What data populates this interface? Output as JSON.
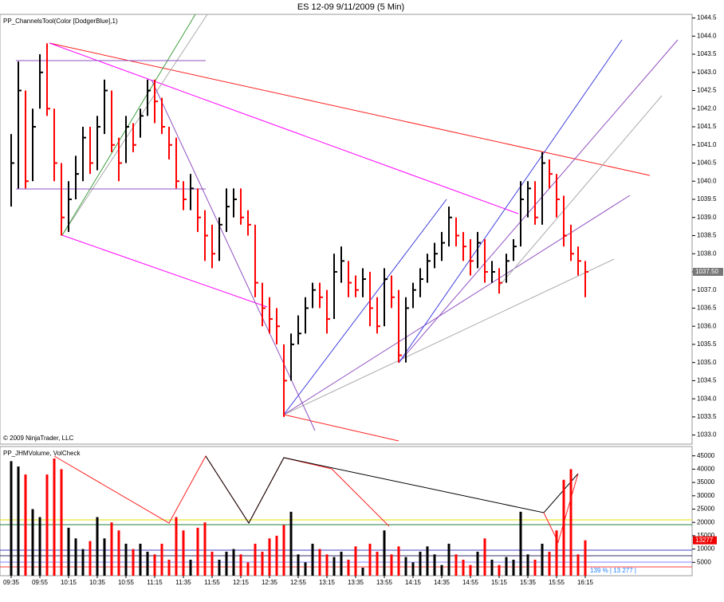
{
  "title": "ES 12-09  9/11/2009 (5 Min)",
  "chart_data": [
    {
      "type": "ohlc",
      "label": "PP_ChannelsTool(Color [DodgerBlue],1)",
      "copyright": "© 2009 NinjaTrader, LLC",
      "categories": [
        "09:35",
        null,
        null,
        null,
        "09:55",
        null,
        null,
        null,
        "10:15",
        null,
        null,
        null,
        "10:35",
        null,
        null,
        null,
        "10:55",
        null,
        null,
        null,
        "11:15",
        null,
        null,
        null,
        "11:35",
        null,
        null,
        null,
        "11:55",
        null,
        null,
        null,
        "12:15",
        null,
        null,
        null,
        "12:35",
        null,
        null,
        null,
        "12:55",
        null,
        null,
        null,
        "13:15",
        null,
        null,
        null,
        "13:35",
        null,
        null,
        null,
        "13:55",
        null,
        null,
        null,
        "14:15",
        null,
        null,
        null,
        "14:35",
        null,
        null,
        null,
        "14:55",
        null,
        null,
        null,
        "15:15",
        null,
        null,
        null,
        "15:35",
        null,
        null,
        null,
        "15:55",
        null,
        null,
        null,
        "16:15"
      ],
      "high": [
        1041.3,
        1043.3,
        1042.5,
        1042.0,
        1043.5,
        1043.8,
        1042.0,
        1040.5,
        1040.0,
        1040.7,
        1041.5,
        1041.5,
        1041.8,
        1042.8,
        1042.5,
        1041.2,
        1041.8,
        1041.6,
        1042.0,
        1042.8,
        1042.8,
        1042.3,
        1041.5,
        1041.2,
        1040.0,
        1040.2,
        1039.8,
        1039.2,
        1038.8,
        1039.0,
        1039.8,
        1039.8,
        1039.8,
        1039.2,
        1038.8,
        1037.2,
        1036.8,
        1036.5,
        1035.5,
        1035.8,
        1036.3,
        1036.8,
        1037.2,
        1037.2,
        1037.0,
        1038.0,
        1038.2,
        1037.8,
        1037.4,
        1037.6,
        1037.5,
        1036.8,
        1037.6,
        1037.4,
        1037.0,
        1036.8,
        1037.2,
        1037.6,
        1038.0,
        1038.3,
        1038.6,
        1039.3,
        1039.0,
        1038.6,
        1038.4,
        1038.6,
        1038.4,
        1037.8,
        1037.6,
        1038.0,
        1038.4,
        1040.0,
        1040.0,
        1040.0,
        1040.8,
        1040.6,
        1040.2,
        1039.6,
        1038.8,
        1038.2,
        1037.8
      ],
      "low": [
        1039.3,
        1039.8,
        1039.8,
        1040.0,
        1042.0,
        1041.8,
        1040.0,
        1038.5,
        1038.6,
        1039.5,
        1040.0,
        1040.2,
        1040.3,
        1041.3,
        1040.8,
        1040.0,
        1040.5,
        1040.8,
        1041.2,
        1041.8,
        1041.6,
        1041.3,
        1040.6,
        1039.8,
        1039.2,
        1039.2,
        1038.6,
        1037.8,
        1037.6,
        1037.8,
        1038.6,
        1039.0,
        1038.8,
        1038.5,
        1036.8,
        1036.0,
        1035.8,
        1035.5,
        1033.5,
        1034.5,
        1035.5,
        1035.8,
        1036.5,
        1036.5,
        1035.8,
        1036.2,
        1037.2,
        1036.8,
        1036.8,
        1036.8,
        1036.0,
        1035.8,
        1036.0,
        1036.5,
        1035.0,
        1035.0,
        1036.5,
        1036.8,
        1037.2,
        1037.6,
        1037.8,
        1038.2,
        1038.2,
        1037.8,
        1037.4,
        1037.6,
        1037.2,
        1037.2,
        1036.9,
        1037.2,
        1037.8,
        1038.2,
        1039.0,
        1038.8,
        1038.8,
        1039.8,
        1039.0,
        1038.2,
        1037.8,
        1037.4,
        1036.8
      ],
      "close": [
        1040.5,
        1042.5,
        1040.0,
        1041.5,
        1043.0,
        1042.0,
        1040.5,
        1039.0,
        1039.5,
        1040.2,
        1041.2,
        1040.5,
        1041.5,
        1042.5,
        1041.0,
        1040.5,
        1041.5,
        1041.0,
        1041.8,
        1042.5,
        1042.2,
        1041.5,
        1041.0,
        1040.0,
        1039.5,
        1039.8,
        1039.0,
        1038.5,
        1038.0,
        1038.8,
        1039.3,
        1039.5,
        1039.0,
        1038.8,
        1037.2,
        1036.5,
        1036.2,
        1036.0,
        1034.5,
        1035.5,
        1035.8,
        1036.5,
        1037.0,
        1036.8,
        1036.2,
        1037.5,
        1037.8,
        1037.2,
        1037.0,
        1037.3,
        1036.5,
        1036.0,
        1037.3,
        1036.8,
        1035.2,
        1036.5,
        1037.0,
        1037.3,
        1037.8,
        1038.0,
        1038.3,
        1039.0,
        1038.5,
        1038.2,
        1037.8,
        1038.3,
        1037.5,
        1037.5,
        1037.2,
        1037.8,
        1038.2,
        1039.5,
        1039.8,
        1039.0,
        1040.5,
        1040.2,
        1039.5,
        1038.5,
        1038.0,
        1037.8,
        1037.5
      ],
      "ylim": [
        1032.75,
        1044.6
      ],
      "yticks": [
        {
          "value": 1033.0,
          "label": "1033.0"
        },
        1033.5,
        {
          "value": 1034.0,
          "label": "1034.0"
        },
        1034.5,
        {
          "value": 1035.0,
          "label": "1035.0"
        },
        1035.5,
        {
          "value": 1036.0,
          "label": "1036.0"
        },
        1036.5,
        {
          "value": 1037.0,
          "label": "1037.0"
        },
        1037.5,
        {
          "value": 1038.0,
          "label": "1038.0"
        },
        1038.5,
        {
          "value": 1039.0,
          "label": "1039.0"
        },
        1039.5,
        {
          "value": 1040.0,
          "label": "1040.0"
        },
        1040.5,
        {
          "value": 1041.0,
          "label": "1041.0"
        },
        1041.5,
        {
          "value": 1042.0,
          "label": "1042.0"
        },
        1042.5,
        {
          "value": 1043.0,
          "label": "1043.0"
        },
        1043.5,
        {
          "value": 1044.0,
          "label": "1044.0"
        },
        1044.5
      ],
      "last": {
        "value": 1037.5,
        "label": "1037.50"
      },
      "up_color": "#000000",
      "down_color": "#ff0000"
    },
    {
      "type": "bar",
      "label": "PP_JHMVolume, VolCheck",
      "footer": "139 % | 13 277 |",
      "values": [
        43000,
        41000,
        38000,
        25000,
        22000,
        38000,
        44000,
        40000,
        18000,
        14000,
        10000,
        13000,
        22000,
        14000,
        20000,
        17000,
        12000,
        10000,
        12000,
        9000,
        8000,
        12000,
        6000,
        22000,
        17000,
        6000,
        18000,
        20000,
        9000,
        6000,
        9000,
        10000,
        8000,
        5000,
        12000,
        9000,
        14000,
        15000,
        19000,
        24000,
        8000,
        5000,
        12000,
        10000,
        8000,
        7000,
        9000,
        6000,
        11000,
        3000,
        12000,
        9000,
        17000,
        8000,
        11000,
        7000,
        5000,
        9000,
        11000,
        8000,
        4000,
        12000,
        8000,
        6000,
        4000,
        9000,
        14000,
        6000,
        4000,
        7000,
        6000,
        24000,
        8000,
        6000,
        12000,
        9000,
        17000,
        36000,
        40000,
        8000,
        13277
      ],
      "ylim": [
        0,
        48500
      ],
      "yticks": [
        5000,
        10000,
        15000,
        20000,
        25000,
        30000,
        35000,
        40000,
        45000
      ],
      "last": 13277
    }
  ]
}
